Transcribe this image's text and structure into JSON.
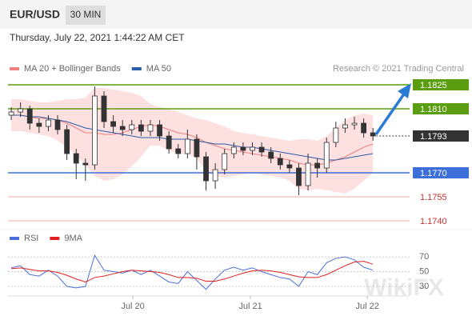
{
  "chart_data": [
    {
      "type": "candlestick",
      "title": "EUR/USD",
      "timeframe": "30 MIN",
      "subtitle": "Thursday, July 22, 2021 1:44:22 AM CET",
      "source": "Research © 2021 Trading Central",
      "watermark": "WikiFX",
      "up_color": "#ffffff",
      "down_color": "#333333",
      "wick_color": "#333333",
      "xlim": [
        -0.35,
        42.95
      ],
      "ylim": [
        1.17355,
        1.18305
      ],
      "open": [
        1.1806,
        1.1808,
        1.181,
        1.1801,
        1.1799,
        1.1803,
        1.1797,
        1.1782,
        1.1776,
        1.1775,
        1.1818,
        1.1802,
        1.1799,
        1.1797,
        1.18,
        1.1796,
        1.18,
        1.1793,
        1.1785,
        1.1782,
        1.1791,
        1.178,
        1.1765,
        1.1772,
        1.1782,
        1.1786,
        1.1784,
        1.1786,
        1.1783,
        1.1779,
        1.1775,
        1.1773,
        1.1762,
        1.1776,
        1.1773,
        1.1789,
        1.1798,
        1.18,
        1.1801,
        1.1795
      ],
      "high": [
        1.1811,
        1.1814,
        1.1812,
        1.1804,
        1.1806,
        1.1806,
        1.18,
        1.1785,
        1.1779,
        1.1824,
        1.1821,
        1.1806,
        1.1803,
        1.1803,
        1.1803,
        1.1803,
        1.1803,
        1.1796,
        1.1788,
        1.1797,
        1.1794,
        1.1783,
        1.1776,
        1.1785,
        1.1789,
        1.1789,
        1.1789,
        1.1789,
        1.1786,
        1.1782,
        1.1778,
        1.1776,
        1.1782,
        1.1779,
        1.1792,
        1.1802,
        1.1804,
        1.1805,
        1.1804,
        1.1798
      ],
      "low": [
        1.1803,
        1.1805,
        1.1797,
        1.1795,
        1.1796,
        1.1794,
        1.1778,
        1.1766,
        1.1765,
        1.1772,
        1.1798,
        1.1795,
        1.1793,
        1.1794,
        1.1793,
        1.1793,
        1.179,
        1.1782,
        1.1779,
        1.1779,
        1.1772,
        1.1759,
        1.176,
        1.1769,
        1.1779,
        1.1781,
        1.1781,
        1.178,
        1.1776,
        1.1772,
        1.177,
        1.1756,
        1.1759,
        1.1767,
        1.177,
        1.1786,
        1.1795,
        1.1797,
        1.1792,
        1.179
      ],
      "close": [
        1.1808,
        1.181,
        1.1801,
        1.1799,
        1.1803,
        1.1797,
        1.1782,
        1.1776,
        1.1775,
        1.1818,
        1.1802,
        1.1799,
        1.1797,
        1.18,
        1.1796,
        1.18,
        1.1793,
        1.1785,
        1.1782,
        1.1791,
        1.178,
        1.1765,
        1.1772,
        1.1782,
        1.1786,
        1.1784,
        1.1786,
        1.1783,
        1.1779,
        1.1775,
        1.1773,
        1.1762,
        1.1776,
        1.1773,
        1.1789,
        1.1798,
        1.18,
        1.1801,
        1.1795,
        1.1793
      ],
      "series": [
        {
          "name": "MA 20 + Bollinger Bands",
          "color": "#f08080",
          "band_color": "#fde0e0",
          "values": [
            1.1806,
            1.1806,
            1.1805,
            1.1804,
            1.1804,
            1.1803,
            1.1801,
            1.1798,
            1.1795,
            1.1795,
            1.1794,
            1.1794,
            1.1795,
            1.1797,
            1.1799,
            1.18,
            1.1799,
            1.1797,
            1.1795,
            1.1794,
            1.1792,
            1.1789,
            1.1787,
            1.1785,
            1.1784,
            1.1783,
            1.1782,
            1.1781,
            1.178,
            1.1779,
            1.1778,
            1.1776,
            1.1775,
            1.1775,
            1.1776,
            1.1778,
            1.178,
            1.1783,
            1.1786,
            1.1788
          ],
          "upper": [
            1.1816,
            1.1816,
            1.1815,
            1.1814,
            1.1814,
            1.1815,
            1.1816,
            1.1816,
            1.1817,
            1.1823,
            1.1823,
            1.1822,
            1.1821,
            1.182,
            1.1818,
            1.1813,
            1.1811,
            1.181,
            1.1808,
            1.1806,
            1.1804,
            1.1803,
            1.1801,
            1.1799,
            1.1796,
            1.1795,
            1.1794,
            1.1793,
            1.1792,
            1.1791,
            1.179,
            1.1791,
            1.1791,
            1.179,
            1.1793,
            1.1798,
            1.1803,
            1.1806,
            1.1807,
            1.1806
          ],
          "lower": [
            1.1796,
            1.1796,
            1.1795,
            1.1794,
            1.1793,
            1.179,
            1.1786,
            1.1781,
            1.1775,
            1.1768,
            1.1765,
            1.1766,
            1.1769,
            1.1774,
            1.178,
            1.1787,
            1.1787,
            1.1784,
            1.1782,
            1.1782,
            1.1779,
            1.1771,
            1.1768,
            1.1767,
            1.1768,
            1.1769,
            1.177,
            1.1769,
            1.1768,
            1.1767,
            1.1765,
            1.176,
            1.1759,
            1.176,
            1.1759,
            1.1758,
            1.1757,
            1.176,
            1.1765,
            1.177
          ]
        },
        {
          "name": "MA 50",
          "color": "#2b5ca8",
          "values": [
            1.1806,
            1.1806,
            1.1805,
            1.1805,
            1.1804,
            1.1803,
            1.1802,
            1.18,
            1.1798,
            1.1797,
            1.1796,
            1.1795,
            1.1794,
            1.1793,
            1.1792,
            1.1792,
            1.1792,
            1.1791,
            1.1791,
            1.1791,
            1.179,
            1.1789,
            1.1788,
            1.1788,
            1.1787,
            1.1786,
            1.1786,
            1.1785,
            1.1784,
            1.1783,
            1.1782,
            1.1781,
            1.178,
            1.1779,
            1.1778,
            1.1778,
            1.1779,
            1.178,
            1.1781,
            1.1782
          ]
        }
      ],
      "levels": [
        {
          "value": 1.1825,
          "label": "1.1825",
          "color": "#5a9e0f",
          "box": true,
          "line": "solid"
        },
        {
          "value": 1.181,
          "label": "1.1810",
          "color": "#5a9e0f",
          "box": true,
          "line": "solid"
        },
        {
          "value": 1.1793,
          "label": "1.1793",
          "color": "#333333",
          "box": true,
          "line": "dotted"
        },
        {
          "value": 1.177,
          "label": "1.1770",
          "color": "#3c6fd8",
          "box": true,
          "line": "solid"
        },
        {
          "value": 1.1755,
          "label": "1.1755",
          "color": "#d03030",
          "box": false,
          "line": "solid"
        },
        {
          "value": 1.174,
          "label": "1.1740",
          "color": "#d03030",
          "box": false,
          "line": "solid"
        }
      ]
    },
    {
      "type": "line",
      "xlim": [
        -0.35,
        42.95
      ],
      "ylim": [
        17,
        82
      ],
      "yticks": [
        30,
        50,
        70
      ],
      "xticks": [
        {
          "value": 13.11,
          "label": "Jul 20"
        },
        {
          "value": 25.79,
          "label": "Jul 21"
        },
        {
          "value": 38.39,
          "label": "Jul 22"
        }
      ],
      "series": [
        {
          "name": "RSI",
          "color": "#4a6fd8",
          "values": [
            55,
            58,
            46,
            44,
            52,
            44,
            30,
            28,
            30,
            72,
            52,
            50,
            48,
            52,
            46,
            52,
            44,
            36,
            34,
            50,
            38,
            26,
            40,
            52,
            56,
            52,
            55,
            50,
            46,
            42,
            40,
            30,
            50,
            46,
            62,
            68,
            70,
            66,
            56,
            52
          ]
        },
        {
          "name": "9MA",
          "color": "#e02020",
          "values": [
            54,
            55,
            53,
            51,
            51,
            49,
            45,
            40,
            36,
            42,
            44,
            47,
            50,
            52,
            51,
            50,
            49,
            46,
            42,
            42,
            41,
            37,
            37,
            40,
            44,
            48,
            51,
            52,
            51,
            49,
            46,
            43,
            42,
            42,
            46,
            52,
            58,
            63,
            64,
            60
          ]
        }
      ]
    }
  ]
}
